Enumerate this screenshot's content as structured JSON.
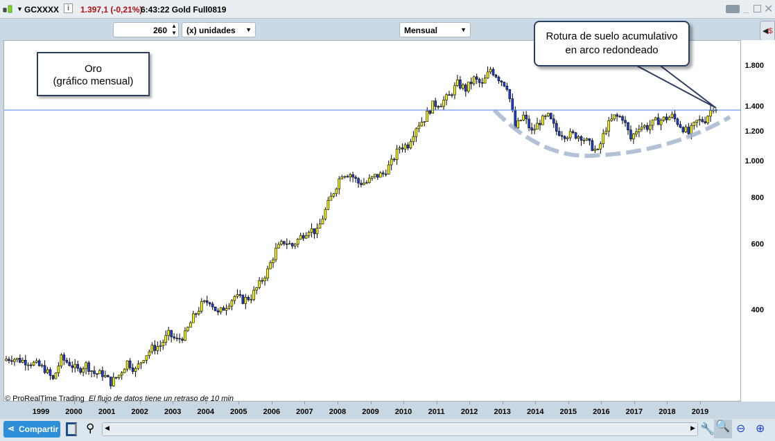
{
  "window": {
    "symbol": "GCXXXX",
    "price_change": "1.397,1 (-0,21%)",
    "time_name": "6:43:22 Gold Full0819",
    "icons": [
      "candlestick-icon",
      "info-icon",
      "keyboard-icon",
      "minimize-icon",
      "maximize-icon",
      "close-icon"
    ]
  },
  "toolbar": {
    "units_value": "260",
    "units_select": "(x) unidades",
    "period_select": "Mensual"
  },
  "annotations": {
    "oro_line1": "Oro",
    "oro_line2": "(gráfico mensual)",
    "callout_line1": "Rotura de suelo acumulativo",
    "callout_line2": "en arco redondeado"
  },
  "footer": {
    "copyright": "© ProRealTime Trading",
    "delay_note": "El flujo de datos tiene un retraso de 10 min",
    "share_label": "Compartir"
  },
  "colors": {
    "up": "#f4f000",
    "down": "#1f3fd8",
    "hline": "#4a7ee8",
    "arc": "#9fb3cc"
  },
  "chart_data": {
    "type": "candlestick",
    "title": "",
    "scale": "log",
    "period": "monthly",
    "ylim": [
      250,
      1950
    ],
    "yticks": [
      "1.800",
      "1.400",
      "1.200",
      "1.000",
      "800",
      "600",
      "400"
    ],
    "ytick_values": [
      1800,
      1400,
      1200,
      1000,
      800,
      600,
      400
    ],
    "xticks": [
      "1999",
      "2000",
      "2001",
      "2002",
      "2003",
      "2004",
      "2005",
      "2006",
      "2007",
      "2008",
      "2009",
      "2010",
      "2011",
      "2012",
      "2013",
      "2014",
      "2015",
      "2016",
      "2017",
      "2018",
      "2019"
    ],
    "start": "1998-01",
    "horizontal_line": 1377,
    "quarterly_closes_approx": [
      300,
      296,
      293,
      288,
      280,
      262,
      299,
      290,
      278,
      288,
      273,
      272,
      258,
      270,
      293,
      278,
      302,
      318,
      324,
      347,
      334,
      346,
      385,
      416,
      427,
      393,
      415,
      438,
      428,
      437,
      472,
      513,
      582,
      613,
      598,
      632,
      663,
      650,
      743,
      834,
      933,
      930,
      880,
      882,
      916,
      930,
      995,
      1096,
      1113,
      1244,
      1307,
      1421,
      1439,
      1500,
      1620,
      1565,
      1668,
      1604,
      1772,
      1675,
      1595,
      1234,
      1326,
      1202,
      1284,
      1322,
      1210,
      1184,
      1183,
      1172,
      1115,
      1061,
      1234,
      1321,
      1316,
      1152,
      1249,
      1242,
      1283,
      1303,
      1325,
      1253,
      1192,
      1282,
      1298,
      1410
    ],
    "last_close": 1397.1
  }
}
